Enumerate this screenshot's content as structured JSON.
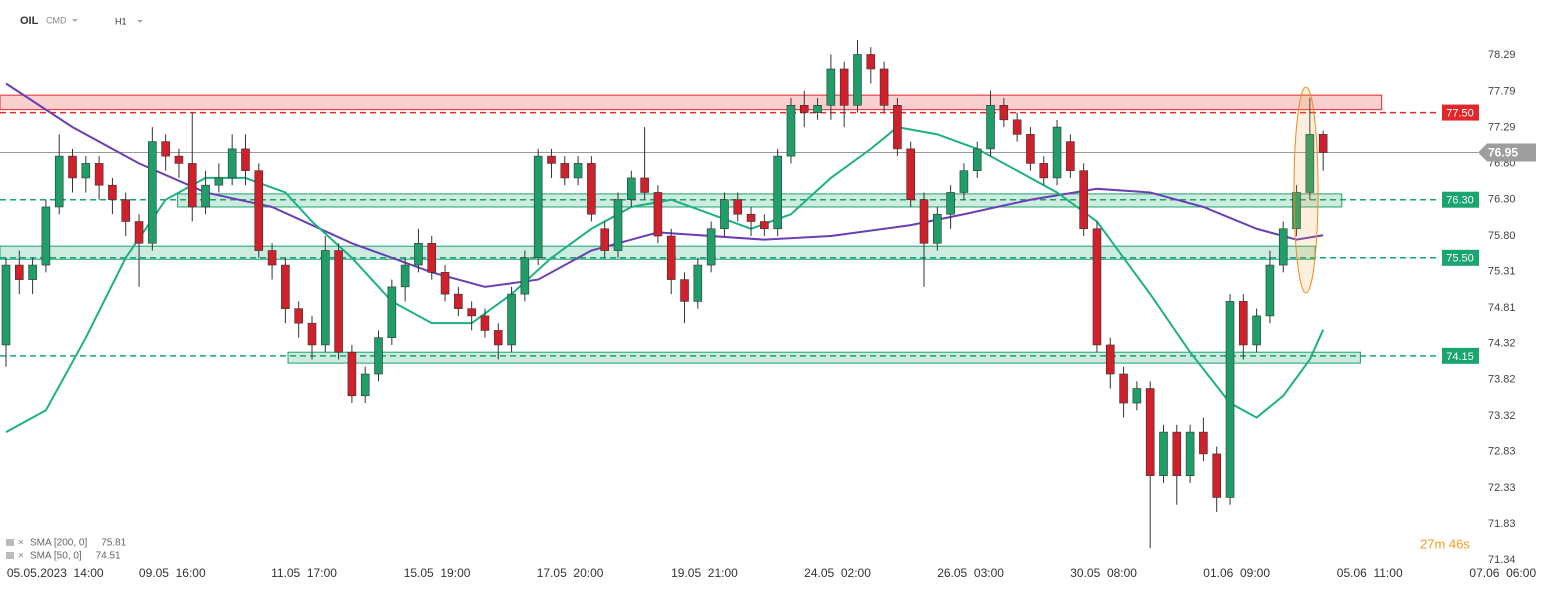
{
  "chart_data": {
    "type": "candlestick",
    "symbol": "OIL",
    "market": "CMD",
    "interval": "H1",
    "countdown": "27m 46s",
    "up_color": "#1f9e6a",
    "down_color": "#d0202b",
    "xlim": [
      -0.45,
      115.75
    ],
    "ylim": [
      71.27,
      79.05
    ],
    "open": [
      74.3,
      75.4,
      75.2,
      75.4,
      76.2,
      76.9,
      76.6,
      76.8,
      76.5,
      76.3,
      76.0,
      75.7,
      77.1,
      76.9,
      76.8,
      76.2,
      76.5,
      76.6,
      77.0,
      76.7,
      75.6,
      75.4,
      74.8,
      74.6,
      74.3,
      75.6,
      74.2,
      73.6,
      73.9,
      74.4,
      75.1,
      75.4,
      75.7,
      75.3,
      75.0,
      74.8,
      74.7,
      74.5,
      74.3,
      75.0,
      75.5,
      76.9,
      76.8,
      76.6,
      76.8,
      75.9,
      75.6,
      76.3,
      76.6,
      76.4,
      75.8,
      75.2,
      74.9,
      75.4,
      75.9,
      76.3,
      76.1,
      76.0,
      75.9,
      76.9,
      77.6,
      77.5,
      77.6,
      78.1,
      77.6,
      78.3,
      78.1,
      77.6,
      77.0,
      76.3,
      75.7,
      76.1,
      76.4,
      76.7,
      77.0,
      77.6,
      77.4,
      77.2,
      76.8,
      76.6,
      77.1,
      76.7,
      75.9,
      74.3,
      73.9,
      73.5,
      73.7,
      72.5,
      73.1,
      72.5,
      73.1,
      72.8,
      72.2,
      74.9,
      74.3,
      74.7,
      75.4,
      75.9,
      76.4,
      77.2
    ],
    "high": [
      75.5,
      75.6,
      75.5,
      76.3,
      77.2,
      77.0,
      76.9,
      76.9,
      76.6,
      76.4,
      76.1,
      77.3,
      77.2,
      77.0,
      77.5,
      76.7,
      76.8,
      77.2,
      77.2,
      76.8,
      75.7,
      75.5,
      74.9,
      74.7,
      75.8,
      75.7,
      74.3,
      74.0,
      74.5,
      75.2,
      75.5,
      75.9,
      75.8,
      75.4,
      75.1,
      74.9,
      74.8,
      74.6,
      75.1,
      75.6,
      77.0,
      77.0,
      76.9,
      76.9,
      76.9,
      76.0,
      76.4,
      76.7,
      77.3,
      76.5,
      75.9,
      75.3,
      75.5,
      76.0,
      76.4,
      76.4,
      76.2,
      76.1,
      77.0,
      77.7,
      77.8,
      77.7,
      78.3,
      78.2,
      78.5,
      78.4,
      78.2,
      77.7,
      77.1,
      76.4,
      76.2,
      76.5,
      76.8,
      77.1,
      77.8,
      77.7,
      77.5,
      77.3,
      76.9,
      77.4,
      77.2,
      76.8,
      76.0,
      74.4,
      74.0,
      73.8,
      73.8,
      73.2,
      73.2,
      73.2,
      73.3,
      72.9,
      75.0,
      75.0,
      74.8,
      75.6,
      76.0,
      76.5,
      77.7,
      77.25
    ],
    "low": [
      74.0,
      75.0,
      75.0,
      75.3,
      76.1,
      76.4,
      76.4,
      76.3,
      76.1,
      75.8,
      75.1,
      75.6,
      76.7,
      76.6,
      76.0,
      76.1,
      76.4,
      76.5,
      76.5,
      75.5,
      75.2,
      74.6,
      74.4,
      74.1,
      74.2,
      74.1,
      73.5,
      73.5,
      73.8,
      74.3,
      74.9,
      75.3,
      75.2,
      74.9,
      74.7,
      74.5,
      74.4,
      74.1,
      74.2,
      74.9,
      75.4,
      76.6,
      76.5,
      76.5,
      76.0,
      75.5,
      75.5,
      76.2,
      76.3,
      75.7,
      75.0,
      74.6,
      74.8,
      75.3,
      75.8,
      76.0,
      75.8,
      75.8,
      75.8,
      76.8,
      77.3,
      77.4,
      77.4,
      77.3,
      77.5,
      77.9,
      77.5,
      76.9,
      76.2,
      75.1,
      75.6,
      75.9,
      76.3,
      76.6,
      76.9,
      77.3,
      77.1,
      76.7,
      76.5,
      76.5,
      76.6,
      75.8,
      74.2,
      73.7,
      73.3,
      73.4,
      71.5,
      72.4,
      72.1,
      72.4,
      72.7,
      72.0,
      72.1,
      74.1,
      74.2,
      74.6,
      75.3,
      75.8,
      76.3,
      76.7
    ],
    "close": [
      75.4,
      75.2,
      75.4,
      76.2,
      76.9,
      76.6,
      76.8,
      76.5,
      76.3,
      76.0,
      75.7,
      77.1,
      76.9,
      76.8,
      76.2,
      76.5,
      76.6,
      77.0,
      76.7,
      75.6,
      75.4,
      74.8,
      74.6,
      74.3,
      75.6,
      74.2,
      73.6,
      73.9,
      74.4,
      75.1,
      75.4,
      75.7,
      75.3,
      75.0,
      74.8,
      74.7,
      74.5,
      74.3,
      75.0,
      75.5,
      76.9,
      76.8,
      76.6,
      76.8,
      76.1,
      75.6,
      76.3,
      76.6,
      76.4,
      75.8,
      75.2,
      74.9,
      75.4,
      75.9,
      76.3,
      76.1,
      76.0,
      75.9,
      76.9,
      77.6,
      77.5,
      77.6,
      78.1,
      77.6,
      78.3,
      78.1,
      77.6,
      77.0,
      76.3,
      75.7,
      76.1,
      76.4,
      76.7,
      77.0,
      77.6,
      77.4,
      77.2,
      76.8,
      76.6,
      77.3,
      76.7,
      75.9,
      74.3,
      73.9,
      73.5,
      73.7,
      72.5,
      73.1,
      72.5,
      73.1,
      72.8,
      72.2,
      74.9,
      74.3,
      74.7,
      75.4,
      75.9,
      76.4,
      77.2,
      76.95
    ],
    "series": [
      {
        "name": "SMA [200, 0]",
        "color": "#6a3fb5",
        "x": [
          0,
          5,
          10,
          15,
          20,
          26,
          32,
          36,
          40,
          44,
          49,
          57,
          62,
          68,
          72,
          77,
          82,
          86,
          90,
          94,
          97,
          99
        ],
        "values": [
          77.9,
          77.3,
          76.8,
          76.4,
          76.2,
          75.7,
          75.3,
          75.1,
          75.2,
          75.6,
          75.85,
          75.75,
          75.8,
          75.95,
          76.1,
          76.3,
          76.45,
          76.4,
          76.2,
          75.9,
          75.75,
          75.81
        ]
      },
      {
        "name": "SMA [50, 0]",
        "color": "#1db184",
        "x": [
          0,
          3,
          6,
          9,
          12,
          15,
          18,
          21,
          23,
          26,
          29,
          32,
          35,
          38,
          41,
          44,
          47,
          50,
          53,
          56,
          59,
          62,
          65,
          67,
          70,
          73,
          76,
          79,
          82,
          86,
          89,
          92,
          94,
          96,
          98,
          99
        ],
        "values": [
          73.1,
          73.4,
          74.4,
          75.5,
          76.3,
          76.6,
          76.6,
          76.4,
          76.0,
          75.5,
          74.9,
          74.6,
          74.6,
          75.0,
          75.5,
          75.9,
          76.2,
          76.3,
          76.1,
          75.9,
          76.1,
          76.6,
          77.0,
          77.3,
          77.2,
          77.0,
          76.7,
          76.4,
          76.0,
          75.0,
          74.2,
          73.5,
          73.3,
          73.6,
          74.1,
          74.51
        ]
      }
    ],
    "zones": [
      {
        "low": 77.54,
        "high": 77.74,
        "x0": -0.45,
        "x1": 103.4,
        "color": "#e0272b"
      },
      {
        "low": 76.2,
        "high": 76.38,
        "x0": 12.9,
        "x1": 100.4,
        "color": "#1aa46f"
      },
      {
        "low": 75.48,
        "high": 75.66,
        "x0": -0.45,
        "x1": 98.4,
        "color": "#1aa46f"
      },
      {
        "low": 74.05,
        "high": 74.2,
        "x0": 21.2,
        "x1": 101.8,
        "color": "#1aa46f"
      }
    ],
    "levels": [
      {
        "value": 77.5,
        "label": "77.50",
        "color": "#e0272b"
      },
      {
        "value": 76.3,
        "label": "76.30",
        "color": "#1aa46f"
      },
      {
        "value": 75.5,
        "label": "75.50",
        "color": "#1aa46f"
      },
      {
        "value": 74.15,
        "label": "74.15",
        "color": "#1aa46f"
      }
    ],
    "current_price": 76.95,
    "yticks": [
      78.29,
      77.79,
      77.29,
      {
        "value": 76.8,
        "label": "76.80"
      },
      {
        "value": 76.3,
        "label": "76.30"
      },
      {
        "value": 75.8,
        "label": "75.80"
      },
      75.31,
      74.81,
      74.32,
      73.82,
      73.32,
      72.83,
      72.33,
      71.83,
      71.34
    ],
    "xticks": [
      {
        "value": 3.7,
        "label": "05.05.2023  14:00"
      },
      {
        "value": 12.5,
        "label": "09.05  16:00"
      },
      {
        "value": 22.4,
        "label": "11.05  17:00"
      },
      {
        "value": 32.4,
        "label": "15.05  19:00"
      },
      {
        "value": 42.4,
        "label": "17.05  20:00"
      },
      {
        "value": 52.5,
        "label": "19.05  21:00"
      },
      {
        "value": 62.5,
        "label": "24.05  02:00"
      },
      {
        "value": 72.5,
        "label": "26.05  03:00"
      },
      {
        "value": 82.5,
        "label": "30.05  08:00"
      },
      {
        "value": 92.5,
        "label": "01.06  09:00"
      },
      {
        "value": 102.5,
        "label": "05.06  11:00"
      },
      {
        "value": 112.5,
        "label": "07.06  06:00"
      }
    ]
  }
}
